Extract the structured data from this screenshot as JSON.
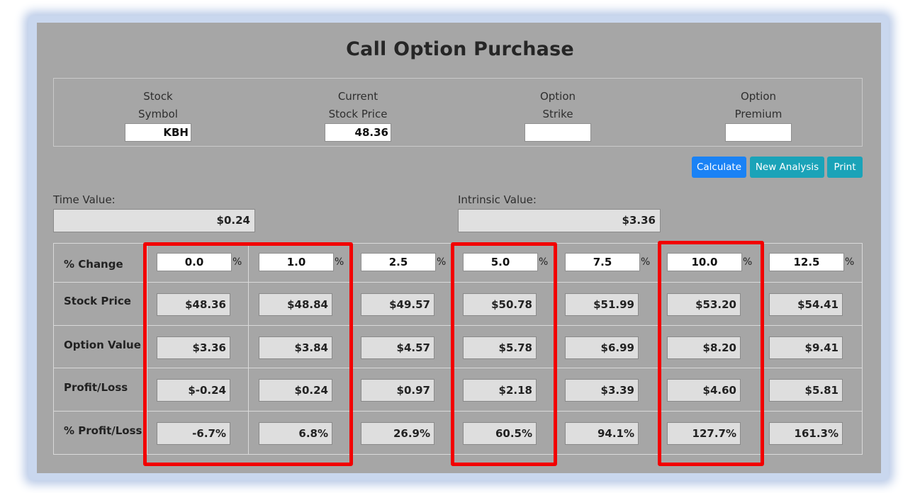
{
  "title": "Call Option Purchase",
  "inputs": {
    "symbol": {
      "label1": "Stock",
      "label2": "Symbol",
      "value": "KBH"
    },
    "price": {
      "label1": "Current",
      "label2": "Stock Price",
      "value": "48.36"
    },
    "strike": {
      "label1": "Option",
      "label2": "Strike",
      "value": ""
    },
    "premium": {
      "label1": "Option",
      "label2": "Premium",
      "value": ""
    }
  },
  "buttons": {
    "calculate": "Calculate",
    "new_analysis": "New Analysis",
    "print": "Print"
  },
  "time_value": {
    "label": "Time Value:",
    "value": "$0.24"
  },
  "intrinsic_value": {
    "label": "Intrinsic Value:",
    "value": "$3.36"
  },
  "table": {
    "row_labels": [
      "% Change",
      "Stock Price",
      "Option Value",
      "Profit/Loss",
      "% Profit/Loss"
    ],
    "pct_sign": "%",
    "columns": [
      {
        "change": "0.0",
        "stock_price": "$48.36",
        "option_value": "$3.36",
        "profit_loss": "$-0.24",
        "pct_profit_loss": "-6.7%"
      },
      {
        "change": "1.0",
        "stock_price": "$48.84",
        "option_value": "$3.84",
        "profit_loss": "$0.24",
        "pct_profit_loss": "6.8%"
      },
      {
        "change": "2.5",
        "stock_price": "$49.57",
        "option_value": "$4.57",
        "profit_loss": "$0.97",
        "pct_profit_loss": "26.9%"
      },
      {
        "change": "5.0",
        "stock_price": "$50.78",
        "option_value": "$5.78",
        "profit_loss": "$2.18",
        "pct_profit_loss": "60.5%"
      },
      {
        "change": "7.5",
        "stock_price": "$51.99",
        "option_value": "$6.99",
        "profit_loss": "$3.39",
        "pct_profit_loss": "94.1%"
      },
      {
        "change": "10.0",
        "stock_price": "$53.20",
        "option_value": "$8.20",
        "profit_loss": "$4.60",
        "pct_profit_loss": "127.7%"
      },
      {
        "change": "12.5",
        "stock_price": "$54.41",
        "option_value": "$9.41",
        "profit_loss": "$5.81",
        "pct_profit_loss": "161.3%"
      }
    ]
  },
  "colors": {
    "highlight": "#f20000",
    "panel": "#a6a6a6",
    "calculate": "#1a82f5",
    "secondary": "#1aa3b8"
  }
}
